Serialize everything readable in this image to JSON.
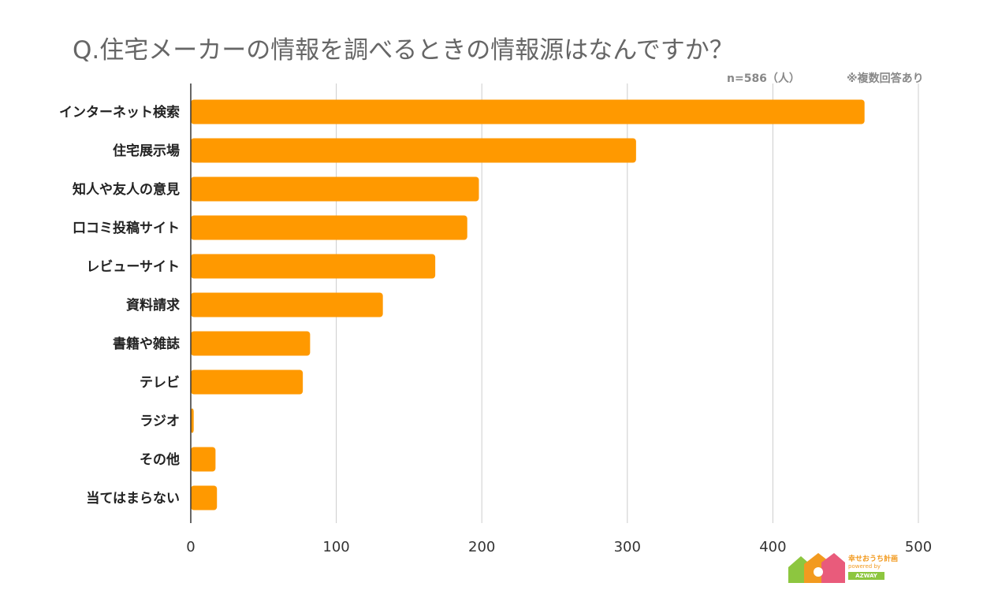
{
  "header": {
    "title": "Q.住宅メーカーの情報を調べるときの情報源はなんですか？",
    "sample_note": "n=586（人）",
    "multi_answer_note": "※複数回答あり"
  },
  "logo": {
    "line1": "幸せおうち計画",
    "line2": "powered by",
    "line3": "AZWAY"
  },
  "colors": {
    "bar": "#ff9900",
    "grid": "#cccccc",
    "axis": "#333333"
  },
  "chart_data": {
    "type": "bar",
    "orientation": "horizontal",
    "categories": [
      "インターネット検索",
      "住宅展示場",
      "知人や友人の意見",
      "口コミ投稿サイト",
      "レビューサイト",
      "資料請求",
      "書籍や雑誌",
      "テレビ",
      "ラジオ",
      "その他",
      "当てはまらない"
    ],
    "values": [
      463,
      306,
      198,
      190,
      168,
      132,
      82,
      77,
      2,
      17,
      18
    ],
    "xlim": [
      0,
      500
    ],
    "xticks": [
      "0",
      "100",
      "200",
      "300",
      "400",
      "500"
    ],
    "grid": true,
    "legend": "none"
  }
}
